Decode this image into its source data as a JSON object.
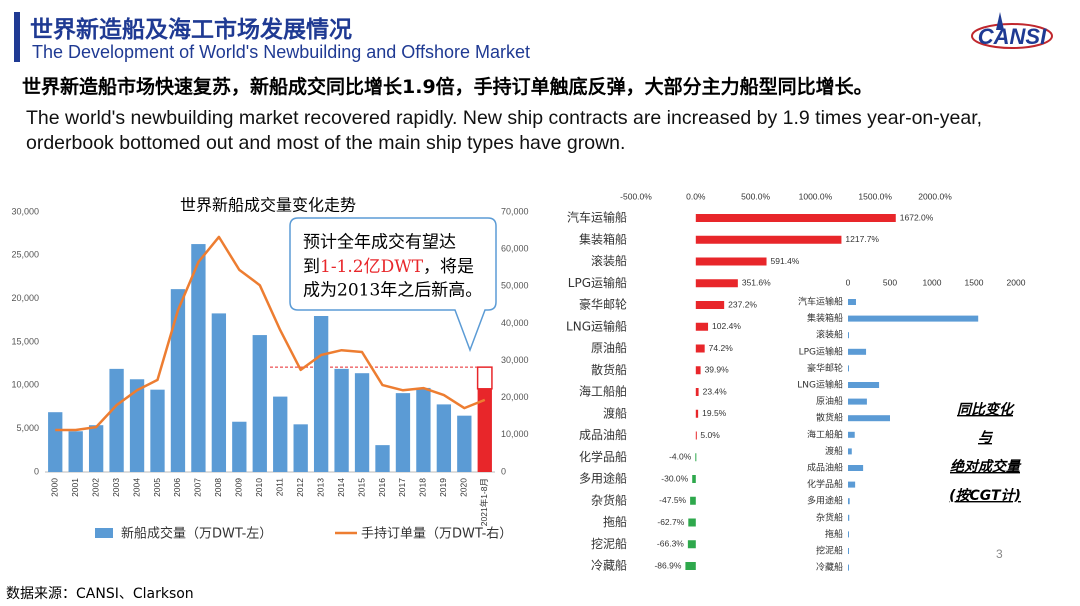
{
  "header": {
    "title": "世界新造船及海工市场发展情况",
    "subtitle": "The Development of World's Newbuilding and Offshore Market",
    "logo": "CANSI"
  },
  "headline": "世界新造船市场快速复苏，新船成交同比增长1.9倍，手持订单触底反弹，大部分主力船型同比增长。",
  "summary": "The world's newbuilding market recovered rapidly. New ship contracts are increased by 1.9 times year-on-year, orderbook bottomed out and most of the main ship types have grown.",
  "side_note": [
    "同比变化",
    "与",
    "绝对成交量",
    "(按CGT计)"
  ],
  "page_number": "3",
  "source": "数据来源：CANSI、Clarkson",
  "chart_data": [
    {
      "type": "combo",
      "title": "世界新船成交量变化走势",
      "categories": [
        "2000",
        "2001",
        "2002",
        "2003",
        "2004",
        "2005",
        "2006",
        "2007",
        "2008",
        "2009",
        "2010",
        "2011",
        "2012",
        "2013",
        "2014",
        "2015",
        "2016",
        "2017",
        "2018",
        "2019",
        "2020",
        "2021年1-8月"
      ],
      "series": [
        {
          "name": "新船成交量（万DWT-左）",
          "type": "bar",
          "color": "#5b9bd5",
          "colors": [
            "#5b9bd5",
            "#5b9bd5",
            "#5b9bd5",
            "#5b9bd5",
            "#5b9bd5",
            "#5b9bd5",
            "#5b9bd5",
            "#5b9bd5",
            "#5b9bd5",
            "#5b9bd5",
            "#5b9bd5",
            "#5b9bd5",
            "#5b9bd5",
            "#5b9bd5",
            "#5b9bd5",
            "#5b9bd5",
            "#5b9bd5",
            "#5b9bd5",
            "#5b9bd5",
            "#5b9bd5",
            "#5b9bd5",
            "#e8262a"
          ],
          "values": [
            6900,
            4700,
            5400,
            11900,
            10700,
            9500,
            21100,
            26300,
            18300,
            5800,
            15800,
            8700,
            5500,
            18000,
            11900,
            11400,
            3100,
            9100,
            9700,
            7800,
            6500,
            9600
          ]
        },
        {
          "name": "手持订单量（万DWT-右）",
          "type": "line",
          "axis": "y2",
          "color": "#ed7d31",
          "values": [
            11300,
            11300,
            12100,
            18000,
            22000,
            24800,
            43600,
            56500,
            63300,
            54400,
            50300,
            38200,
            27500,
            31500,
            32800,
            32300,
            23400,
            22000,
            22600,
            20700,
            17200,
            19400
          ]
        }
      ],
      "projection": 12100,
      "projection_color": "#e8262a",
      "annotation": [
        "预计全年成交有望达",
        "到",
        "1-1.2亿DWT",
        "，将是",
        "成为2013年之后新高。"
      ],
      "ylim": [
        0,
        30000
      ],
      "yticks": [
        0,
        {
          "value": 5000,
          "label": "5,000"
        },
        {
          "value": 10000,
          "label": "10,000"
        },
        {
          "value": 15000,
          "label": "15,000"
        },
        {
          "value": 20000,
          "label": "20,000"
        },
        {
          "value": 25000,
          "label": "25,000"
        },
        {
          "value": 30000,
          "label": "30,000"
        }
      ],
      "y2lim": [
        0,
        70000
      ],
      "y2ticks": [
        0,
        {
          "value": 10000,
          "label": "10,000"
        },
        {
          "value": 20000,
          "label": "20,000"
        },
        {
          "value": 30000,
          "label": "30,000"
        },
        {
          "value": 40000,
          "label": "40,000"
        },
        {
          "value": 50000,
          "label": "50,000"
        },
        {
          "value": 60000,
          "label": "60,000"
        },
        {
          "value": 70000,
          "label": "70,000"
        }
      ]
    },
    {
      "type": "bar",
      "orientation": "horizontal",
      "categories": [
        "汽车运输船",
        "集装箱船",
        "滚装船",
        "LPG运输船",
        "豪华邮轮",
        "LNG运输船",
        "原油船",
        "散货船",
        "海工船舶",
        "渡船",
        "成品油船",
        "化学品船",
        "多用途船",
        "杂货船",
        "拖船",
        "挖泥船",
        "冷藏船"
      ],
      "values": [
        1672.0,
        1217.7,
        591.4,
        351.6,
        237.2,
        102.4,
        74.2,
        39.9,
        23.4,
        19.5,
        5.0,
        -4.0,
        -30.0,
        -47.5,
        -62.7,
        -66.3,
        -86.9
      ],
      "value_labels": [
        "1672.0%",
        "1217.7%",
        "591.4%",
        "351.6%",
        "237.2%",
        "102.4%",
        "74.2%",
        "39.9%",
        "23.4%",
        "19.5%",
        "5.0%",
        "-4.0%",
        "-30.0%",
        "-47.5%",
        "-62.7%",
        "-66.3%",
        "-86.9%"
      ],
      "positive_color": "#e8262a",
      "negative_color": "#2ea84c",
      "xlim": [
        -500,
        2000
      ],
      "xticks": [
        {
          "value": -500,
          "label": "-500.0%"
        },
        {
          "value": 0,
          "label": "0.0%"
        },
        {
          "value": 500,
          "label": "500.0%"
        },
        {
          "value": 1000,
          "label": "1000.0%"
        },
        {
          "value": 1500,
          "label": "1500.0%"
        },
        {
          "value": 2000,
          "label": "2000.0%"
        }
      ]
    },
    {
      "type": "bar",
      "orientation": "horizontal",
      "categories": [
        "汽车运输船",
        "集装箱船",
        "滚装船",
        "LPG运输船",
        "豪华邮轮",
        "LNG运输船",
        "原油船",
        "散货船",
        "海工船舶",
        "渡船",
        "成品油船",
        "化学品船",
        "多用途船",
        "杂货船",
        "拖船",
        "挖泥船",
        "冷藏船"
      ],
      "values": [
        95,
        1550,
        5,
        215,
        10,
        370,
        225,
        500,
        80,
        45,
        180,
        85,
        20,
        15,
        10,
        5,
        2
      ],
      "positive_color": "#5b9bd5",
      "negative_color": "#5b9bd5",
      "xlim": [
        0,
        2000
      ],
      "xticks": [
        0,
        500,
        1000,
        1500,
        2000
      ]
    }
  ]
}
